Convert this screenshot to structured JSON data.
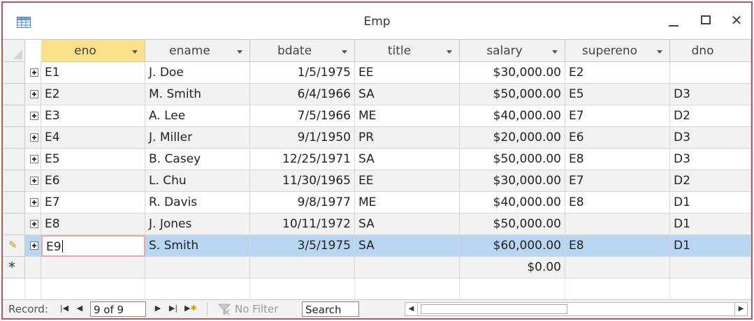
{
  "window": {
    "title": "Emp"
  },
  "columns": [
    "eno",
    "ename",
    "bdate",
    "title",
    "salary",
    "supereno",
    "dno"
  ],
  "selected_column": "eno",
  "rows": [
    {
      "eno": "E1",
      "ename": "J. Doe",
      "bdate": "1/5/1975",
      "title": "EE",
      "salary": "$30,000.00",
      "supereno": "E2",
      "dno": ""
    },
    {
      "eno": "E2",
      "ename": "M. Smith",
      "bdate": "6/4/1966",
      "title": "SA",
      "salary": "$50,000.00",
      "supereno": "E5",
      "dno": "D3"
    },
    {
      "eno": "E3",
      "ename": "A. Lee",
      "bdate": "7/5/1966",
      "title": "ME",
      "salary": "$40,000.00",
      "supereno": "E7",
      "dno": "D2"
    },
    {
      "eno": "E4",
      "ename": "J. Miller",
      "bdate": "9/1/1950",
      "title": "PR",
      "salary": "$20,000.00",
      "supereno": "E6",
      "dno": "D3"
    },
    {
      "eno": "E5",
      "ename": "B. Casey",
      "bdate": "12/25/1971",
      "title": "SA",
      "salary": "$50,000.00",
      "supereno": "E8",
      "dno": "D3"
    },
    {
      "eno": "E6",
      "ename": "L. Chu",
      "bdate": "11/30/1965",
      "title": "EE",
      "salary": "$30,000.00",
      "supereno": "E7",
      "dno": "D2"
    },
    {
      "eno": "E7",
      "ename": "R. Davis",
      "bdate": "9/8/1977",
      "title": "ME",
      "salary": "$40,000.00",
      "supereno": "E8",
      "dno": "D1"
    },
    {
      "eno": "E8",
      "ename": "J. Jones",
      "bdate": "10/11/1972",
      "title": "SA",
      "salary": "$50,000.00",
      "supereno": "",
      "dno": "D1"
    },
    {
      "eno": "E9",
      "ename": "S. Smith",
      "bdate": "3/5/1975",
      "title": "SA",
      "salary": "$60,000.00",
      "supereno": "E8",
      "dno": "D1"
    }
  ],
  "current_row": 8,
  "new_row": {
    "salary": "$0.00"
  },
  "navigation": {
    "record_label": "Record:",
    "record_position": "9 of 9",
    "filter_label": "No Filter",
    "search_label": "Search"
  },
  "colors": {
    "window_border": "#b05860",
    "selected_header": "#fbe18a",
    "current_row": "#b8d6f2",
    "alt_row": "#f2f2f2"
  },
  "icons": {
    "app": "datasheet-table-icon",
    "expand": "expand-plus-icon",
    "editing": "pencil-icon",
    "new_record": "asterisk-icon"
  }
}
